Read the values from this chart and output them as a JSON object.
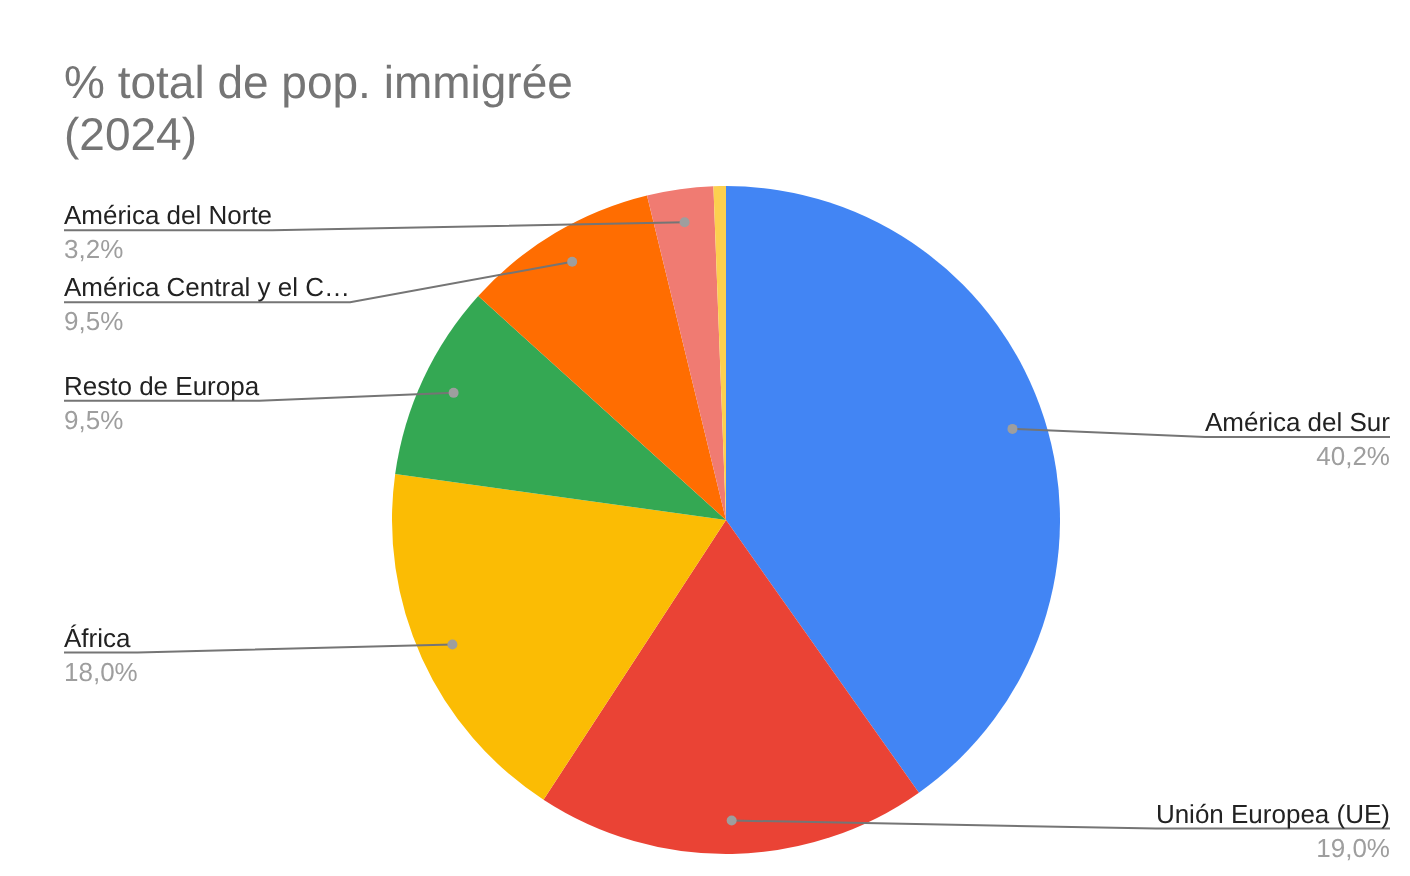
{
  "chart_data": {
    "type": "pie",
    "title": "% total de pop. immigrée (2024)",
    "categories": [
      "América del Sur",
      "Unión Europea (UE)",
      "África",
      "Resto de Europa",
      "América Central y el C…",
      "América del Norte",
      null
    ],
    "values": [
      40.2,
      19.0,
      18.0,
      9.5,
      9.5,
      3.2,
      0.6
    ],
    "value_labels": [
      "40,2%",
      "19,0%",
      "18,0%",
      "9,5%",
      "9,5%",
      "3,2%",
      null
    ],
    "colors": [
      "#4285f4",
      "#ea4335",
      "#fbbc04",
      "#34a853",
      "#ff6d01",
      "#f07b72",
      "#fcd04f"
    ],
    "legend": false
  }
}
